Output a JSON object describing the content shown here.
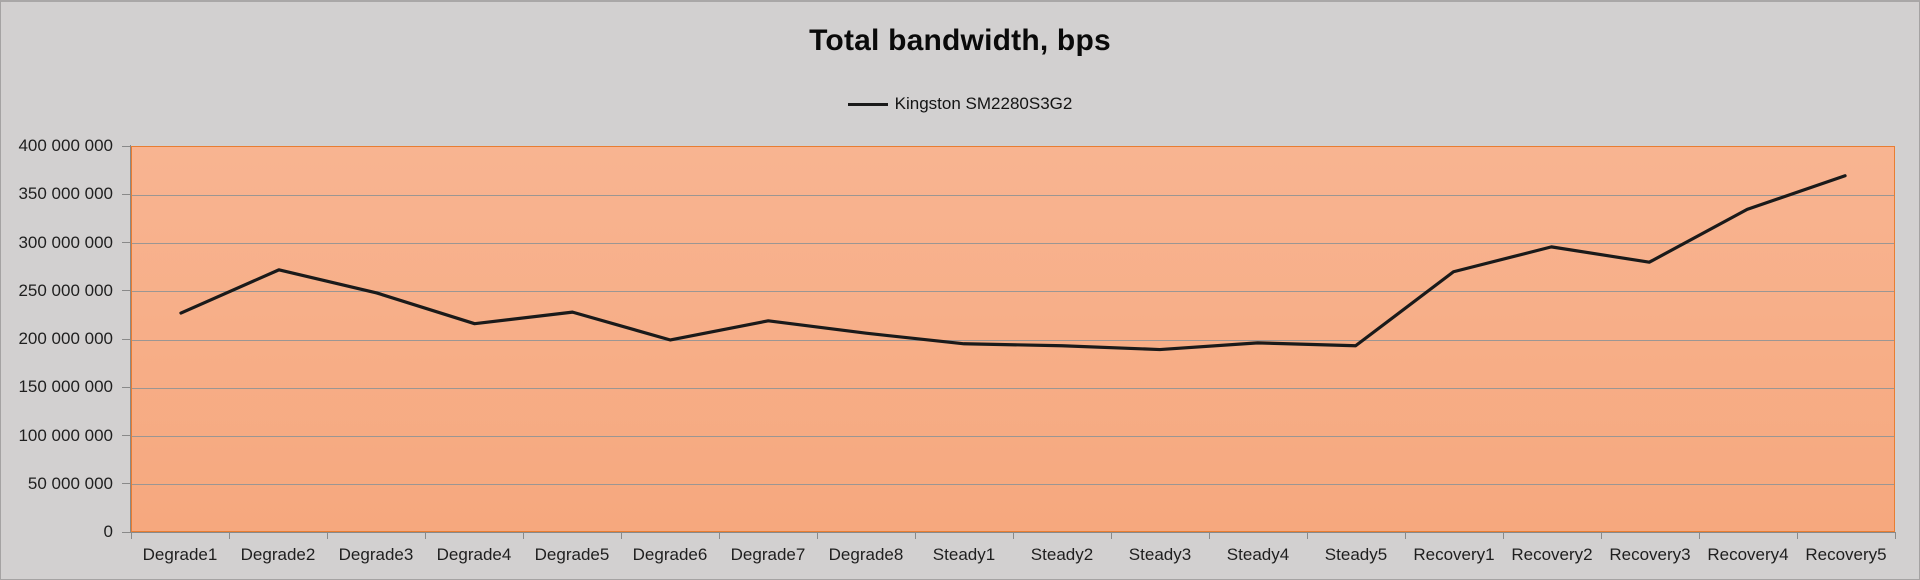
{
  "chart_data": {
    "type": "line",
    "title": "Total bandwidth, bps",
    "categories": [
      "Degrade1",
      "Degrade2",
      "Degrade3",
      "Degrade4",
      "Degrade5",
      "Degrade6",
      "Degrade7",
      "Degrade8",
      "Steady1",
      "Steady2",
      "Steady3",
      "Steady4",
      "Steady5",
      "Recovery1",
      "Recovery2",
      "Recovery3",
      "Recovery4",
      "Recovery5"
    ],
    "series": [
      {
        "name": "Kingston SM2280S3G2",
        "values": [
          227000000,
          272000000,
          248000000,
          216000000,
          228000000,
          199000000,
          219000000,
          206000000,
          195000000,
          193000000,
          189000000,
          196000000,
          193000000,
          270000000,
          296000000,
          280000000,
          335000000,
          370000000
        ]
      }
    ],
    "xlabel": "",
    "ylabel": "",
    "ylim": [
      0,
      400000000
    ],
    "y_tick_step": 50000000,
    "y_tick_labels_top_down": [
      "400 000 000",
      "350 000 000",
      "300 000 000",
      "250 000 000",
      "200 000 000",
      "150 000 000",
      "100 000 000",
      "50 000 000",
      "0"
    ],
    "grid": true,
    "legend_position": "top-center"
  },
  "colors": {
    "background": "#d2d0d0",
    "plot_fill_top": "#f8b491",
    "plot_fill_bottom": "#f6a87e",
    "plot_border": "#e87d32",
    "gridline": "#9b9693",
    "axis": "#898989",
    "series_line": "#1a1a1a",
    "label_text": "#1f1f1f"
  }
}
